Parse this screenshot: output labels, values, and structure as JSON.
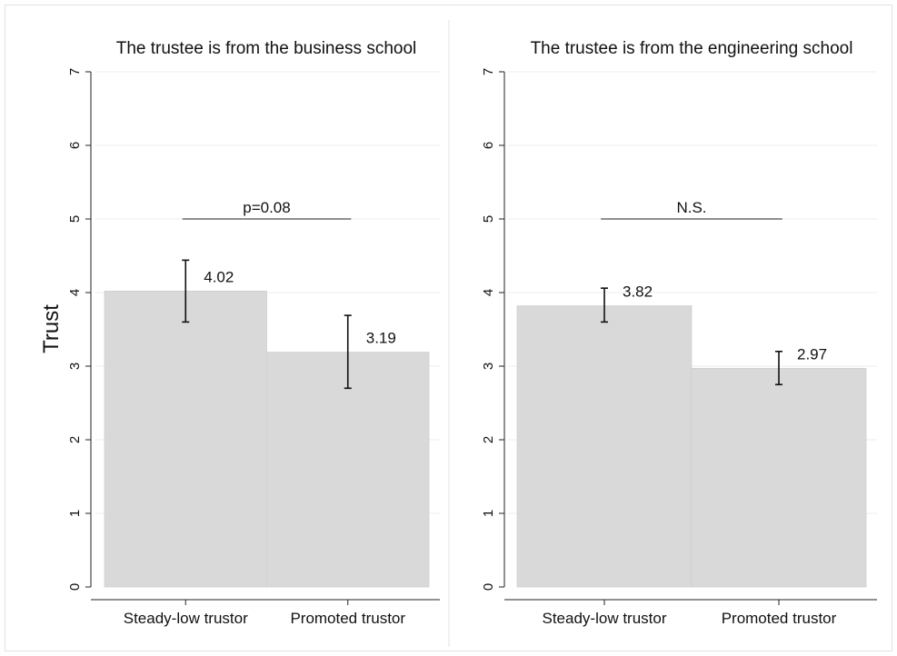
{
  "figure": {
    "ylabel": "Trust"
  },
  "chart_data": [
    {
      "type": "bar",
      "title": "The trustee is from the business school",
      "ylabel": "Trust",
      "categories": [
        "Steady-low trustor",
        "Promoted trustor"
      ],
      "values": [
        4.02,
        3.19
      ],
      "data_labels": [
        "4.02",
        "3.19"
      ],
      "error_bars": [
        [
          3.6,
          4.44
        ],
        [
          2.7,
          3.69
        ]
      ],
      "yticks": [
        0,
        1,
        2,
        3,
        4,
        5,
        6,
        7
      ],
      "ylim": [
        0,
        7
      ],
      "significance": {
        "text": "p=0.08",
        "y": 5.0
      },
      "grid": true,
      "bar_color": "#d9d9d9"
    },
    {
      "type": "bar",
      "title": "The trustee is from the engineering school",
      "categories": [
        "Steady-low trustor",
        "Promoted trustor"
      ],
      "values": [
        3.82,
        2.97
      ],
      "data_labels": [
        "3.82",
        "2.97"
      ],
      "error_bars": [
        [
          3.6,
          4.06
        ],
        [
          2.75,
          3.2
        ]
      ],
      "yticks": [
        0,
        1,
        2,
        3,
        4,
        5,
        6,
        7
      ],
      "ylim": [
        0,
        7
      ],
      "significance": {
        "text": "N.S.",
        "y": 5.0
      },
      "grid": true,
      "bar_color": "#d9d9d9"
    }
  ]
}
